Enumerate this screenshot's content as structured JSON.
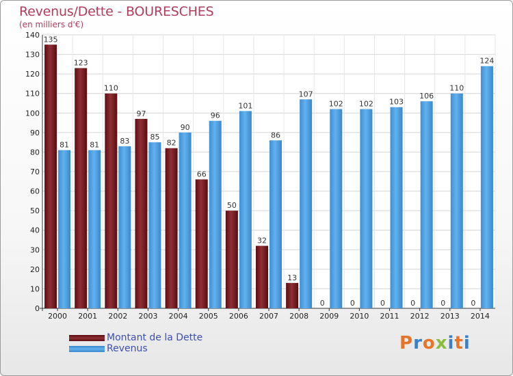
{
  "header": {
    "title": "Revenus/Dette - BOURESCHES",
    "subtitle": "(en milliers d'€)"
  },
  "legend": {
    "items": [
      {
        "label": "Montant de la Dette",
        "color": "#7a1f25"
      },
      {
        "label": "Revenus",
        "color": "#4ea1e2"
      }
    ]
  },
  "logo": {
    "text": "Proxiti"
  },
  "chart_data": {
    "type": "bar",
    "title": "Revenus/Dette - BOURESCHES",
    "subtitle": "(en milliers d'€)",
    "xlabel": "",
    "ylabel": "",
    "ylim": [
      0,
      140
    ],
    "yticks": [
      0,
      10,
      20,
      30,
      40,
      50,
      60,
      70,
      80,
      90,
      100,
      110,
      120,
      130,
      140
    ],
    "grid": true,
    "legend_position": "bottom-left",
    "categories": [
      "2000",
      "2001",
      "2002",
      "2003",
      "2004",
      "2005",
      "2006",
      "2007",
      "2008",
      "2009",
      "2010",
      "2011",
      "2012",
      "2013",
      "2014"
    ],
    "series": [
      {
        "name": "Montant de la Dette",
        "color": "#7a1f25",
        "values": [
          135,
          123,
          110,
          97,
          82,
          66,
          50,
          32,
          13,
          0,
          0,
          0,
          0,
          0,
          0
        ]
      },
      {
        "name": "Revenus",
        "color": "#4ea1e2",
        "values": [
          81,
          81,
          83,
          85,
          90,
          96,
          101,
          86,
          107,
          102,
          102,
          103,
          106,
          110,
          124
        ]
      }
    ]
  }
}
